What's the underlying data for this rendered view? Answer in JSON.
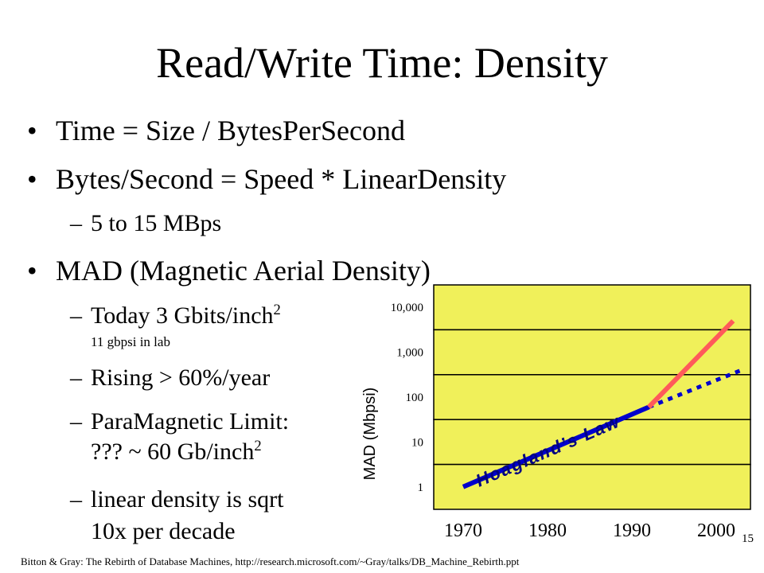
{
  "slide": {
    "title": "Read/Write Time: Density",
    "bullets": [
      "Time = Size / BytesPerSecond",
      "Bytes/Second = Speed * LinearDensity",
      "MAD (Magnetic Aerial Density)"
    ],
    "subbullets": {
      "speed_range": "5 to 15 MBps",
      "today": "Today 3 Gbits/inch",
      "today_sup": "2",
      "today_note": "11 gbpsi in lab",
      "rising": "Rising > 60%/year",
      "limit_line1": "ParaMagnetic Limit:",
      "limit_line2": "??? ~ 60 Gb/inch",
      "limit_sup": "2",
      "linear_line1": "linear density is sqrt",
      "linear_line2": "10x per decade"
    },
    "dash": "–",
    "bullet_char": "•"
  },
  "footer": {
    "citation": "Bitton & Gray: The Rebirth of Database Machines, http://research.microsoft.com/~Gray/talks/DB_Machine_Rebirth.ppt",
    "page_number": "15"
  },
  "colors": {
    "band_fill": "#f0f05a",
    "grid_line": "#000000",
    "hoagland_line": "#0000cc",
    "actual_line": "#ff5a5a",
    "annotation_text": "#000080"
  },
  "chart_data": {
    "type": "line",
    "ylabel": "MAD (Mbpsi)",
    "xlabel": "",
    "title": "",
    "y_scale": "log",
    "ylim": [
      1,
      10000
    ],
    "xlim": [
      1970,
      2005
    ],
    "y_ticks": [
      "1",
      "10",
      "100",
      "1,000",
      "10,000"
    ],
    "x_ticks": [
      "1970",
      "1980",
      "1990",
      "2000"
    ],
    "annotations": [
      "Hoagland’s Law"
    ],
    "series": [
      {
        "style": "solid",
        "color_key": "hoagland_line",
        "points": [
          [
            1970,
            1
          ],
          [
            1992,
            60
          ]
        ]
      },
      {
        "style": "dotted",
        "color_key": "hoagland_line",
        "points": [
          [
            1992,
            60
          ],
          [
            2003,
            400
          ]
        ]
      },
      {
        "style": "solid",
        "color_key": "actual_line",
        "points": [
          [
            1992,
            60
          ],
          [
            2002,
            5000
          ]
        ]
      }
    ]
  }
}
